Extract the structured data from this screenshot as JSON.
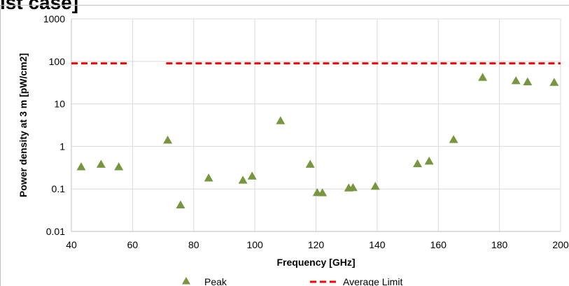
{
  "page": {
    "cut_title": "ist case]"
  },
  "chart_data": {
    "type": "scatter",
    "title": "",
    "xlabel": "Frequency [GHz]",
    "ylabel": "Power density at 3 m [pW/cm2]",
    "xlim": [
      40,
      200
    ],
    "ylim": [
      0.01,
      1000
    ],
    "yscale": "log",
    "grid": true,
    "legend_position": "bottom",
    "x_ticks": [
      "40",
      "60",
      "80",
      "100",
      "120",
      "140",
      "160",
      "180",
      "200"
    ],
    "y_ticks": [
      "0.01",
      "0.1",
      "1",
      "10",
      "100",
      "1000"
    ],
    "series": [
      {
        "name": "Peak",
        "marker": "triangle",
        "color": "#77963f",
        "points": [
          {
            "x": 43.2,
            "y": 0.33
          },
          {
            "x": 49.7,
            "y": 0.38
          },
          {
            "x": 55.5,
            "y": 0.33
          },
          {
            "x": 71.5,
            "y": 1.4
          },
          {
            "x": 75.7,
            "y": 0.042
          },
          {
            "x": 84.9,
            "y": 0.18
          },
          {
            "x": 96.1,
            "y": 0.16
          },
          {
            "x": 99.1,
            "y": 0.2
          },
          {
            "x": 108.4,
            "y": 4.0
          },
          {
            "x": 118.1,
            "y": 0.38
          },
          {
            "x": 120.4,
            "y": 0.082
          },
          {
            "x": 122.1,
            "y": 0.081
          },
          {
            "x": 130.7,
            "y": 0.105
          },
          {
            "x": 132.1,
            "y": 0.107
          },
          {
            "x": 139.4,
            "y": 0.115
          },
          {
            "x": 153.2,
            "y": 0.39
          },
          {
            "x": 157.0,
            "y": 0.45
          },
          {
            "x": 165.0,
            "y": 1.45
          },
          {
            "x": 174.5,
            "y": 42
          },
          {
            "x": 185.4,
            "y": 35
          },
          {
            "x": 189.2,
            "y": 33
          },
          {
            "x": 197.9,
            "y": 32
          }
        ]
      },
      {
        "name": "Average Limit",
        "style": "dashed",
        "color": "#ff0000",
        "segments": [
          {
            "x1": 40,
            "x2": 59,
            "y": 90
          },
          {
            "x1": 71,
            "x2": 200,
            "y": 90
          }
        ]
      }
    ]
  }
}
